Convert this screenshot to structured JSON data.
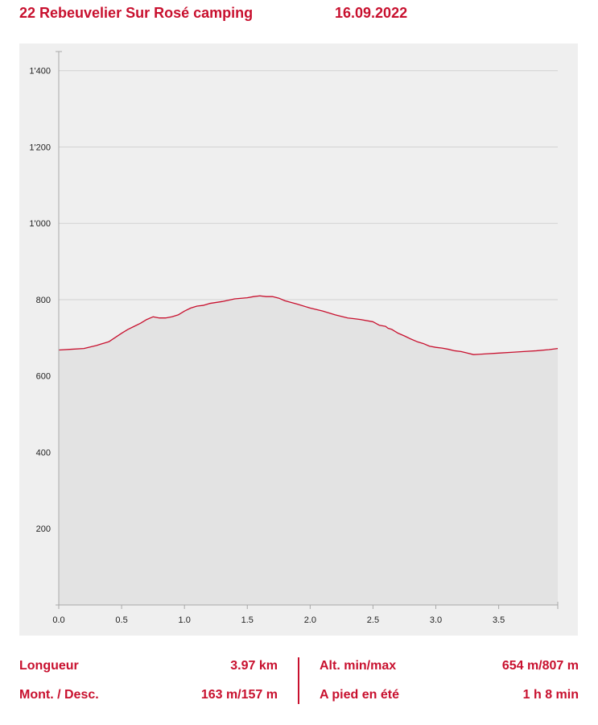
{
  "header": {
    "route": "22 Rebeuvelier Sur Rosé camping",
    "date": "16.09.2022"
  },
  "colors": {
    "accent": "#c8102e",
    "chart_background": "#efefef",
    "area_fill": "#e3e3e3",
    "gridline": "#d2d2d2",
    "axis": "#a8a8a8"
  },
  "chart_data": {
    "type": "area",
    "title": "",
    "xlabel": "",
    "ylabel": "",
    "xlim": [
      0,
      3.97
    ],
    "ylim": [
      0,
      1450
    ],
    "x_ticks": [
      0.0,
      0.5,
      1.0,
      1.5,
      2.0,
      2.5,
      3.0,
      3.5
    ],
    "x_tick_labels": [
      "0.0",
      "0.5",
      "1.0",
      "1.5",
      "2.0",
      "2.5",
      "3.0",
      "3.5"
    ],
    "y_ticks": [
      200,
      400,
      600,
      800,
      1000,
      1200,
      1400
    ],
    "y_tick_labels": [
      "200",
      "400",
      "600",
      "800",
      "1'000",
      "1'200",
      "1'400"
    ],
    "grid": true,
    "legend": "none",
    "series": [
      {
        "x": [
          0.0,
          0.1,
          0.2,
          0.25,
          0.3,
          0.4,
          0.5,
          0.55,
          0.6,
          0.65,
          0.7,
          0.75,
          0.8,
          0.85,
          0.9,
          0.95,
          1.0,
          1.05,
          1.1,
          1.15,
          1.2,
          1.3,
          1.4,
          1.5,
          1.55,
          1.6,
          1.65,
          1.7,
          1.75,
          1.8,
          1.9,
          2.0,
          2.1,
          2.2,
          2.3,
          2.35,
          2.4,
          2.5,
          2.55,
          2.6,
          2.62,
          2.65,
          2.7,
          2.75,
          2.8,
          2.85,
          2.9,
          2.95,
          3.0,
          3.05,
          3.1,
          3.15,
          3.2,
          3.25,
          3.3,
          3.35,
          3.4,
          3.5,
          3.6,
          3.7,
          3.8,
          3.9,
          3.97
        ],
        "values": [
          668,
          670,
          672,
          676,
          680,
          690,
          712,
          722,
          730,
          738,
          748,
          755,
          752,
          752,
          755,
          760,
          770,
          778,
          783,
          785,
          790,
          795,
          802,
          805,
          808,
          810,
          808,
          808,
          804,
          797,
          788,
          778,
          770,
          760,
          752,
          750,
          748,
          742,
          733,
          730,
          725,
          722,
          712,
          705,
          697,
          690,
          685,
          678,
          675,
          673,
          670,
          666,
          664,
          660,
          656,
          657,
          658,
          660,
          662,
          664,
          666,
          669,
          672
        ]
      }
    ]
  },
  "stats": {
    "length_label": "Longueur",
    "length_value": "3.97 km",
    "alt_label": "Alt. min/max",
    "alt_value": "654 m/807 m",
    "updown_label": "Mont. / Desc.",
    "updown_value": "163 m/157 m",
    "time_label": "A pied en été",
    "time_value": "1 h 8 min"
  }
}
